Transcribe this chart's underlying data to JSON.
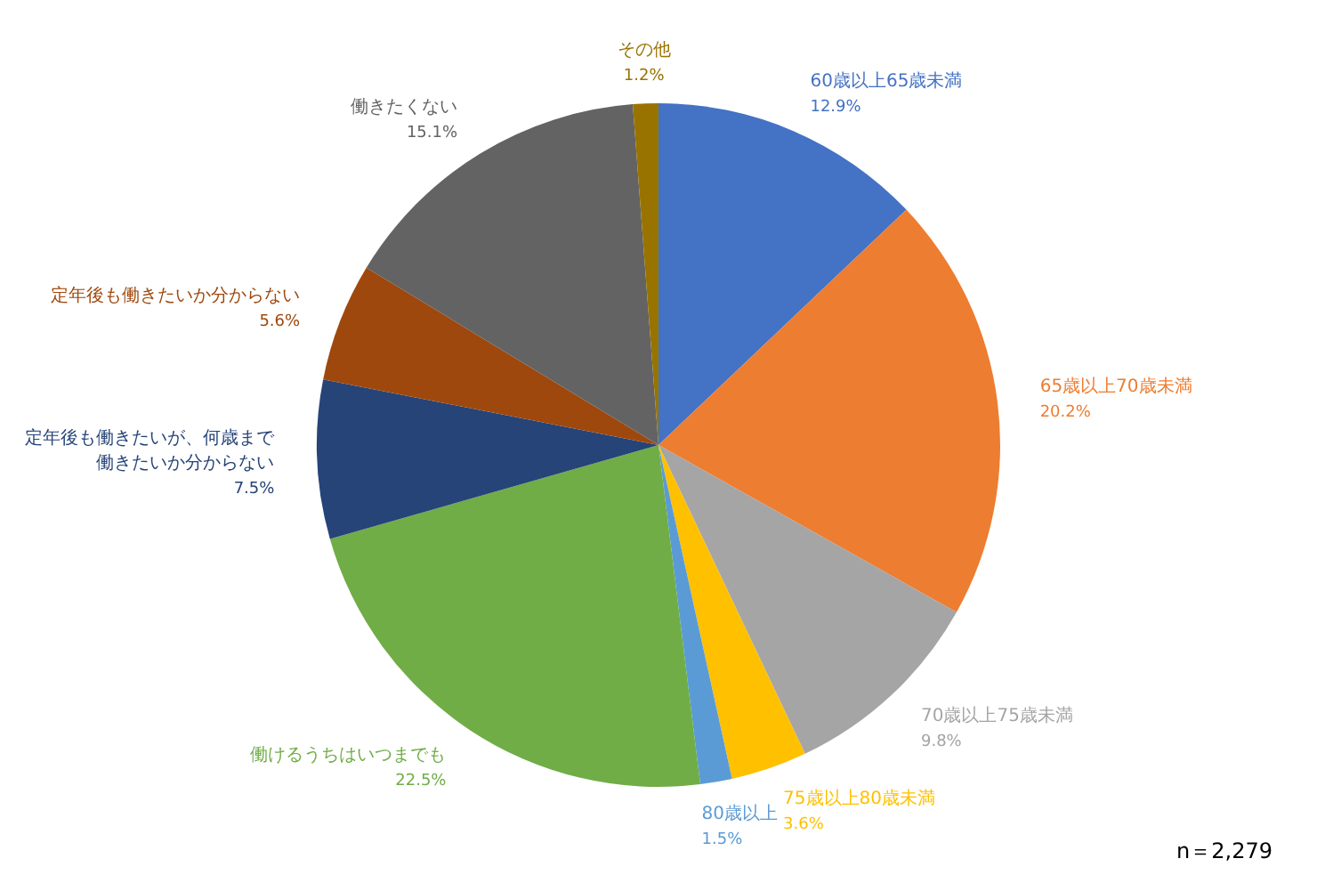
{
  "chart_data": {
    "type": "pie",
    "categories": [
      "60歳以上65歳未満",
      "65歳以上70歳未満",
      "70歳以上75歳未満",
      "75歳以上80歳未満",
      "80歳以上",
      "働けるうちはいつまでも",
      "定年後も働きたいが、何歳まで働きたいか分からない",
      "定年後も働きたいか分からない",
      "働きたくない",
      "その他"
    ],
    "values": [
      12.9,
      20.2,
      9.8,
      3.6,
      1.5,
      22.5,
      7.5,
      5.6,
      15.1,
      1.2
    ],
    "value_labels": [
      "12.9%",
      "20.2%",
      "9.8%",
      "3.6%",
      "1.5%",
      "22.5%",
      "7.5%",
      "5.6%",
      "15.1%",
      "1.2%"
    ],
    "colors": [
      "#4472c4",
      "#ed7d31",
      "#a5a5a5",
      "#ffc000",
      "#5b9bd5",
      "#70ad47",
      "#264478",
      "#9e480e",
      "#636363",
      "#997300"
    ],
    "annotations": [
      "n＝2,279"
    ]
  }
}
